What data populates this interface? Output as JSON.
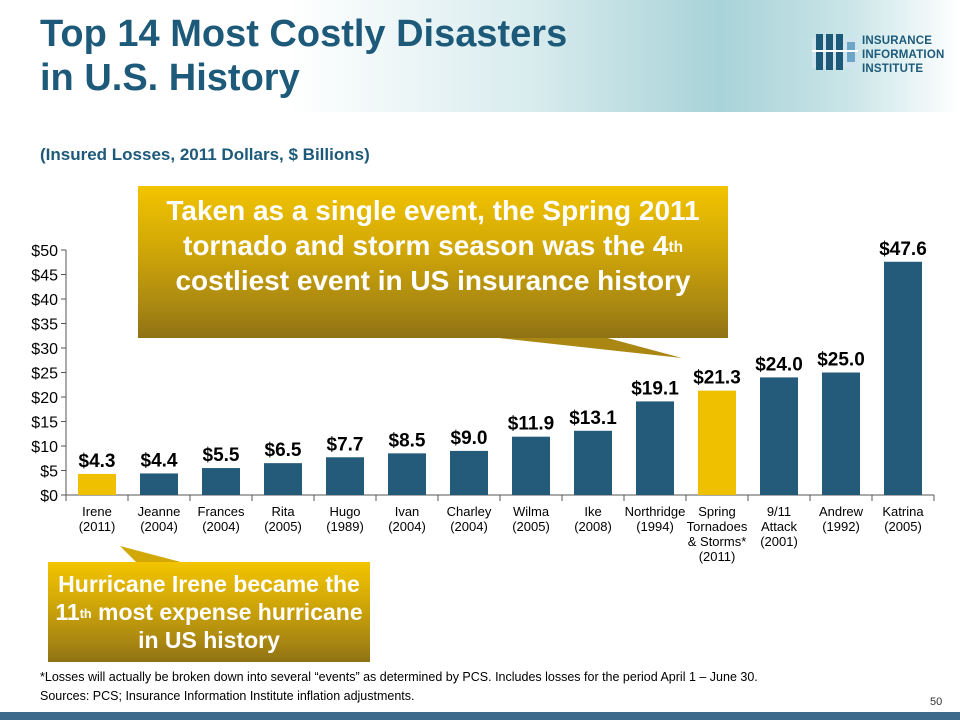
{
  "header": {
    "title_line1": "Top 14 Most Costly Disasters",
    "title_line2": "in U.S. History",
    "logo_line1": "INSURANCE",
    "logo_line2": "INFORMATION",
    "logo_line3": "INSTITUTE"
  },
  "subtitle": "(Insured Losses, 2011 Dollars, $ Billions)",
  "callouts": {
    "main_part1": "Taken as a single event, the Spring 2011 tornado and storm season was the 4",
    "main_sup": "th",
    "main_part2": " costliest event in US insurance history",
    "irene_part1": "Hurricane Irene became the 11",
    "irene_sup": "th",
    "irene_part2": " most expense hurricane in US history"
  },
  "footnote": {
    "line1": "*Losses will actually be broken down into several “events” as determined by PCS.  Includes losses for the period April 1 – June 30.",
    "line2": "Sources: PCS; Insurance Information Institute inflation adjustments."
  },
  "page_number": "50",
  "colors": {
    "bar": "#245a7a",
    "highlight": "#efc000",
    "title": "#1d5a7a",
    "callout": "#c9a20a"
  },
  "chart_data": {
    "type": "bar",
    "ylim": [
      0,
      50
    ],
    "yticks": [
      0,
      5,
      10,
      15,
      20,
      25,
      30,
      35,
      40,
      45,
      50
    ],
    "ytick_labels": [
      "$0",
      "$5",
      "$10",
      "$15",
      "$20",
      "$25",
      "$30",
      "$35",
      "$40",
      "$45",
      "$50"
    ],
    "grid": false,
    "categories": [
      [
        "Irene",
        "(2011)"
      ],
      [
        "Jeanne",
        "(2004)"
      ],
      [
        "Frances",
        "(2004)"
      ],
      [
        "Rita",
        "(2005)"
      ],
      [
        "Hugo",
        "(1989)"
      ],
      [
        "Ivan",
        "(2004)"
      ],
      [
        "Charley",
        "(2004)"
      ],
      [
        "Wilma",
        "(2005)"
      ],
      [
        "Ike",
        "(2008)"
      ],
      [
        "Northridge",
        "(1994)"
      ],
      [
        "Spring",
        "Tornadoes",
        "& Storms*",
        "(2011)"
      ],
      [
        "9/11",
        "Attack",
        "(2001)"
      ],
      [
        "Andrew",
        "(1992)"
      ],
      [
        "Katrina",
        "(2005)"
      ]
    ],
    "values": [
      4.3,
      4.4,
      5.5,
      6.5,
      7.7,
      8.5,
      9.0,
      11.9,
      13.1,
      19.1,
      21.3,
      24.0,
      25.0,
      47.6
    ],
    "data_labels": [
      "$4.3",
      "$4.4",
      "$5.5",
      "$6.5",
      "$7.7",
      "$8.5",
      "$9.0",
      "$11.9",
      "$13.1",
      "$19.1",
      "$21.3",
      "$24.0",
      "$25.0",
      "$47.6"
    ],
    "highlighted": [
      0,
      10
    ]
  }
}
